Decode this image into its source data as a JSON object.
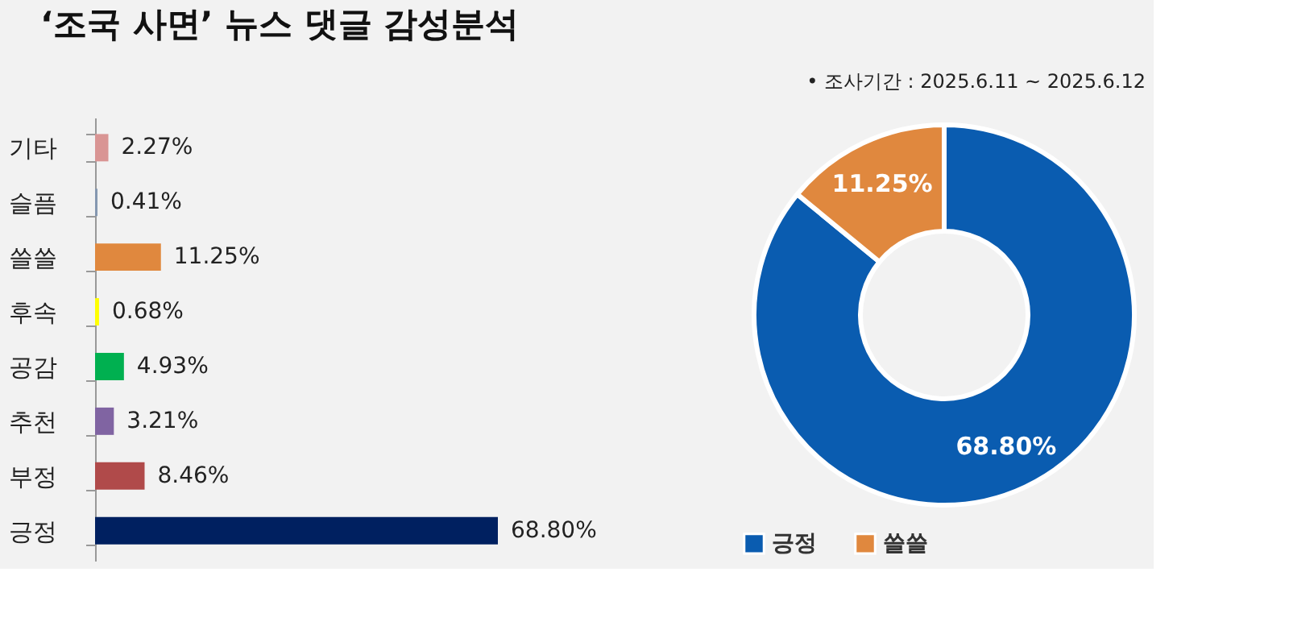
{
  "chart_data": [
    {
      "type": "bar",
      "orientation": "horizontal",
      "title": "‘조국 사면’ 뉴스 댓글 감성분석",
      "categories": [
        "기타",
        "슬픔",
        "쓸쓸",
        "후속",
        "공감",
        "추천",
        "부정",
        "긍정"
      ],
      "values": [
        2.27,
        0.41,
        11.25,
        0.68,
        4.93,
        3.21,
        8.46,
        68.8
      ],
      "colors": [
        "#d99594",
        "#8497b0",
        "#e0883e",
        "#ffff00",
        "#00b050",
        "#8064a2",
        "#b04a4a",
        "#002060"
      ],
      "value_labels": [
        "2.27%",
        "0.41%",
        "11.25%",
        "0.68%",
        "4.93%",
        "3.21%",
        "8.46%",
        "68.80%"
      ],
      "tick_labels": "y",
      "grid": false
    },
    {
      "type": "donut",
      "annotations": [
        "•   조사기간 : 2025.6.11 ~ 2025.6.12"
      ],
      "categories": [
        "긍정",
        "쓸쓸"
      ],
      "values": [
        68.8,
        11.25
      ],
      "colors": [
        "#0a5cb0",
        "#e0883e"
      ],
      "value_labels": [
        "68.80%",
        "11.25%"
      ],
      "legend": "bottom"
    }
  ]
}
